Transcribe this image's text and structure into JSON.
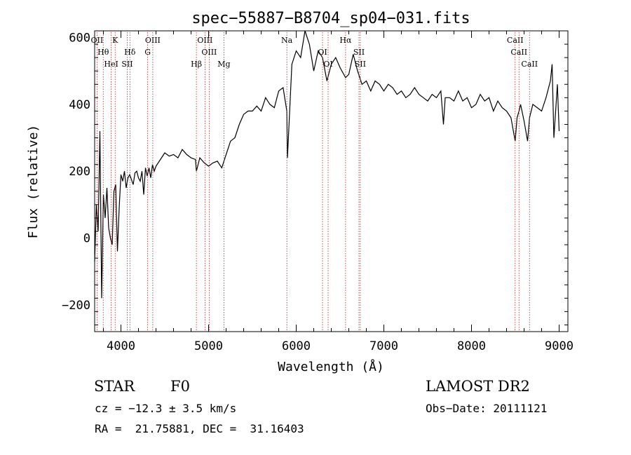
{
  "chart_data": {
    "type": "line",
    "title": "spec−55887−B8704_sp04−031.fits",
    "xlabel": "Wavelength (Å)",
    "ylabel": "Flux (relative)",
    "xlim": [
      3700,
      9100
    ],
    "ylim": [
      -280,
      620
    ],
    "xticks": [
      {
        "value": 4000,
        "label": "4000"
      },
      {
        "value": 5000,
        "label": "5000"
      },
      {
        "value": 6000,
        "label": "6000"
      },
      {
        "value": 7000,
        "label": "7000"
      },
      {
        "value": 8000,
        "label": "8000"
      },
      {
        "value": 9000,
        "label": "9000"
      }
    ],
    "yticks": [
      {
        "value": -200,
        "label": "−200"
      },
      {
        "value": 0,
        "label": "0"
      },
      {
        "value": 200,
        "label": "200"
      },
      {
        "value": 400,
        "label": "400"
      },
      {
        "value": 600,
        "label": "600"
      }
    ],
    "grid": false,
    "series": [
      {
        "color": "#000000",
        "x": [
          3700,
          3720,
          3740,
          3760,
          3780,
          3800,
          3820,
          3840,
          3860,
          3880,
          3900,
          3920,
          3940,
          3960,
          3980,
          4000,
          4020,
          4040,
          4060,
          4080,
          4100,
          4120,
          4140,
          4160,
          4180,
          4200,
          4220,
          4240,
          4260,
          4280,
          4300,
          4320,
          4340,
          4360,
          4380,
          4400,
          4450,
          4500,
          4550,
          4600,
          4650,
          4700,
          4750,
          4800,
          4850,
          4861,
          4900,
          4950,
          5000,
          5050,
          5100,
          5150,
          5200,
          5250,
          5300,
          5350,
          5400,
          5450,
          5500,
          5550,
          5600,
          5650,
          5700,
          5750,
          5800,
          5850,
          5893,
          5900,
          5950,
          6000,
          6050,
          6100,
          6150,
          6200,
          6250,
          6300,
          6350,
          6400,
          6450,
          6500,
          6563,
          6600,
          6650,
          6700,
          6750,
          6800,
          6850,
          6900,
          6950,
          7000,
          7050,
          7100,
          7150,
          7200,
          7250,
          7300,
          7350,
          7400,
          7450,
          7500,
          7550,
          7600,
          7650,
          7680,
          7700,
          7750,
          7800,
          7850,
          7900,
          7950,
          8000,
          8050,
          8100,
          8150,
          8200,
          8250,
          8300,
          8350,
          8400,
          8450,
          8498,
          8520,
          8542,
          8560,
          8600,
          8640,
          8662,
          8700,
          8750,
          8800,
          8850,
          8900,
          8920,
          8940,
          8960,
          8980,
          9000
        ],
        "y": [
          -70,
          100,
          20,
          320,
          -180,
          130,
          60,
          150,
          30,
          0,
          -20,
          140,
          160,
          -40,
          90,
          190,
          170,
          200,
          150,
          180,
          190,
          175,
          160,
          195,
          200,
          180,
          170,
          200,
          130,
          210,
          185,
          210,
          180,
          220,
          200,
          215,
          235,
          255,
          245,
          250,
          240,
          265,
          250,
          240,
          235,
          200,
          240,
          225,
          215,
          225,
          230,
          210,
          250,
          290,
          300,
          340,
          370,
          380,
          380,
          395,
          380,
          420,
          400,
          390,
          440,
          450,
          380,
          240,
          520,
          560,
          540,
          620,
          580,
          500,
          560,
          540,
          470,
          520,
          540,
          510,
          480,
          490,
          550,
          500,
          460,
          470,
          440,
          470,
          460,
          440,
          460,
          450,
          430,
          440,
          420,
          430,
          450,
          430,
          420,
          410,
          430,
          420,
          440,
          340,
          420,
          420,
          410,
          440,
          410,
          420,
          390,
          400,
          430,
          410,
          420,
          380,
          410,
          390,
          380,
          360,
          290,
          360,
          380,
          400,
          350,
          290,
          360,
          400,
          390,
          380,
          420,
          470,
          520,
          300,
          380,
          460,
          320
        ]
      }
    ],
    "lines": [
      {
        "label": "OII",
        "wavelength": 3727
      },
      {
        "label": "Hθ",
        "wavelength": 3798
      },
      {
        "label": "HeI",
        "wavelength": 3889
      },
      {
        "label": "K",
        "wavelength": 3934
      },
      {
        "label": "Hδ",
        "wavelength": 4102
      },
      {
        "label": "SII",
        "wavelength": 4072
      },
      {
        "label": "OIII",
        "wavelength": 4363
      },
      {
        "label": "G",
        "wavelength": 4305
      },
      {
        "label": "Hβ",
        "wavelength": 4861
      },
      {
        "label": "OIII",
        "wavelength": 4959
      },
      {
        "label": "OIII",
        "wavelength": 5007
      },
      {
        "label": "Mg",
        "wavelength": 5175
      },
      {
        "label": "Na",
        "wavelength": 5893
      },
      {
        "label": "OI",
        "wavelength": 6300
      },
      {
        "label": "OI",
        "wavelength": 6364
      },
      {
        "label": "Hα",
        "wavelength": 6563
      },
      {
        "label": "SII",
        "wavelength": 6716
      },
      {
        "label": "SII",
        "wavelength": 6731
      },
      {
        "label": "CaII",
        "wavelength": 8498
      },
      {
        "label": "CaII",
        "wavelength": 8542
      },
      {
        "label": "CaII",
        "wavelength": 8662
      }
    ]
  },
  "info": {
    "object_class": "STAR",
    "subclass": "F0",
    "redshift": "cz = −12.3 ± 3.5 km/s",
    "coordinates": "RA =  21.75881, DEC =  31.16403",
    "survey": "LAMOST DR2",
    "obs_date": "Obs−Date: 20111121"
  }
}
